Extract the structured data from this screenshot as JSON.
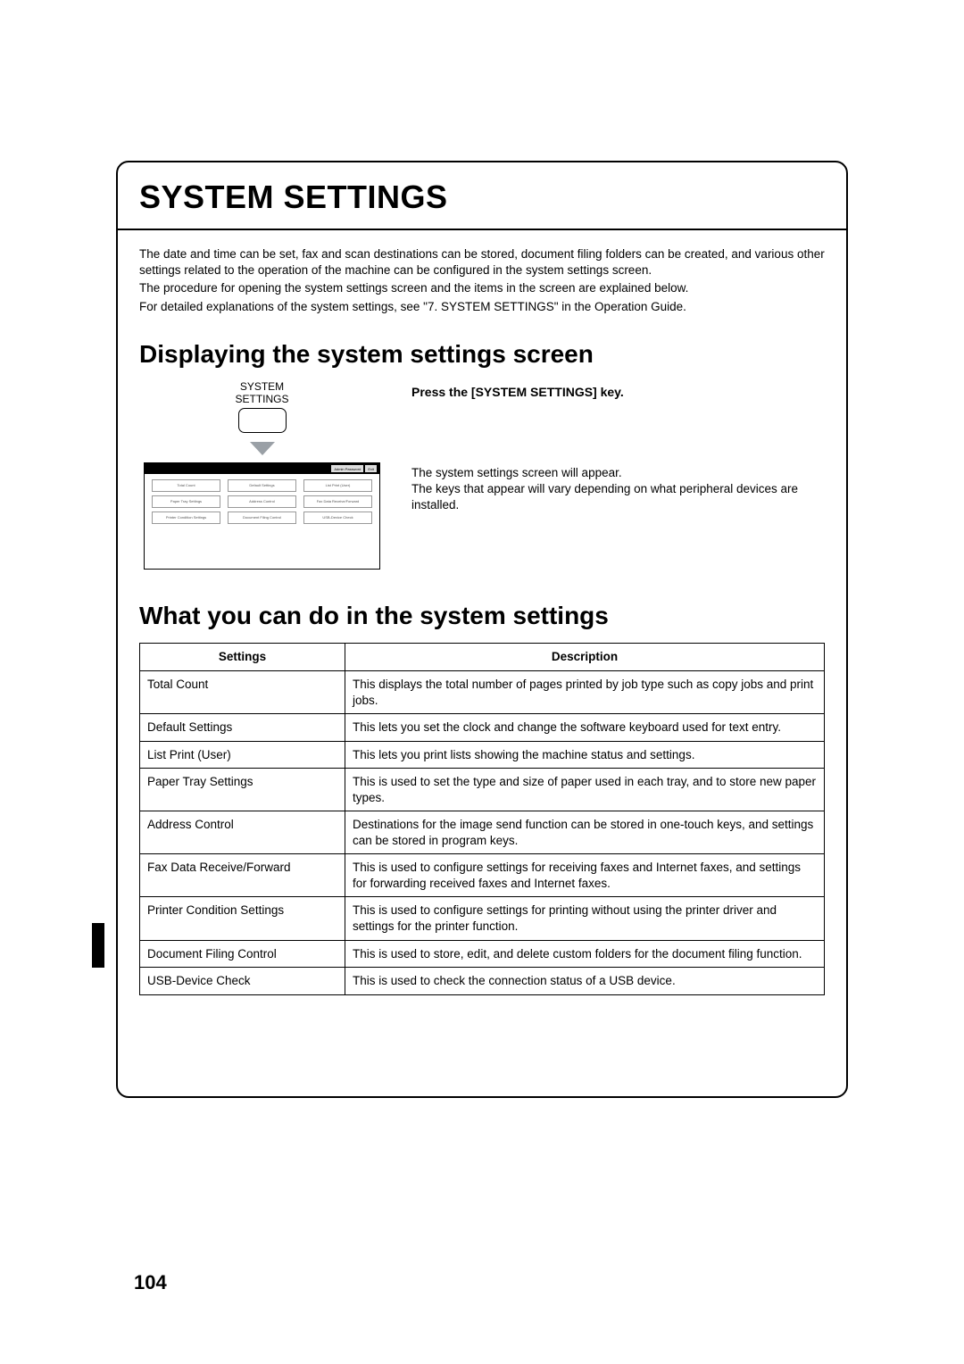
{
  "page_number": "104",
  "title": "SYSTEM SETTINGS",
  "intro": {
    "p1": "The date and time can be set, fax and scan destinations can be stored, document filing folders can be created, and various other settings related to the operation of the machine can be configured in the system settings screen.",
    "p2": "The procedure for opening the system settings screen and the items in the screen are explained below.",
    "p3": "For detailed explanations of the system settings, see \"7. SYSTEM SETTINGS\" in the Operation Guide."
  },
  "section1": {
    "heading": "Displaying the system settings screen",
    "key_label_line1": "SYSTEM",
    "key_label_line2": "SETTINGS",
    "step_heading": "Press the [SYSTEM SETTINGS] key.",
    "desc_line1": "The system settings screen will appear.",
    "desc_line2": "The keys that appear will vary depending on what peripheral devices are installed.",
    "screen_top_left": "Admin Password",
    "screen_top_right": "Exit",
    "screen_buttons": [
      "Total Count",
      "Default Settings",
      "List Print (User)",
      "Paper Tray Settings",
      "Address Control",
      "Fax Data Receive/Forward",
      "Printer Condition Settings",
      "Document Filing Control",
      "USB-Device Check"
    ]
  },
  "section2": {
    "heading": "What you can do in the system settings",
    "table": {
      "col1": "Settings",
      "col2": "Description",
      "rows": [
        {
          "s": "Total Count",
          "d": "This displays the total number of pages printed by job type such as copy jobs and print jobs."
        },
        {
          "s": "Default Settings",
          "d": "This lets you set the clock and change the software keyboard used for text entry."
        },
        {
          "s": "List Print (User)",
          "d": "This lets you print lists showing the machine status and settings."
        },
        {
          "s": "Paper Tray Settings",
          "d": "This is used to set the type and size of paper used in each tray, and to store new paper types."
        },
        {
          "s": "Address Control",
          "d": "Destinations for the image send function can be stored in one-touch keys, and settings can be stored in program keys."
        },
        {
          "s": "Fax Data Receive/Forward",
          "d": "This is used to configure settings for receiving faxes and Internet faxes, and settings for forwarding received faxes and Internet faxes."
        },
        {
          "s": "Printer Condition Settings",
          "d": "This is used to configure settings for printing without using the printer driver and settings for the printer function."
        },
        {
          "s": "Document Filing Control",
          "d": "This is used to store, edit, and delete custom folders for the document filing function."
        },
        {
          "s": "USB-Device Check",
          "d": "This is used to check the connection status of a USB device."
        }
      ]
    }
  },
  "colors": {
    "border": "#000000",
    "background": "#ffffff",
    "arrow": "#9aa0a6",
    "mock_button_border": "#999999"
  }
}
